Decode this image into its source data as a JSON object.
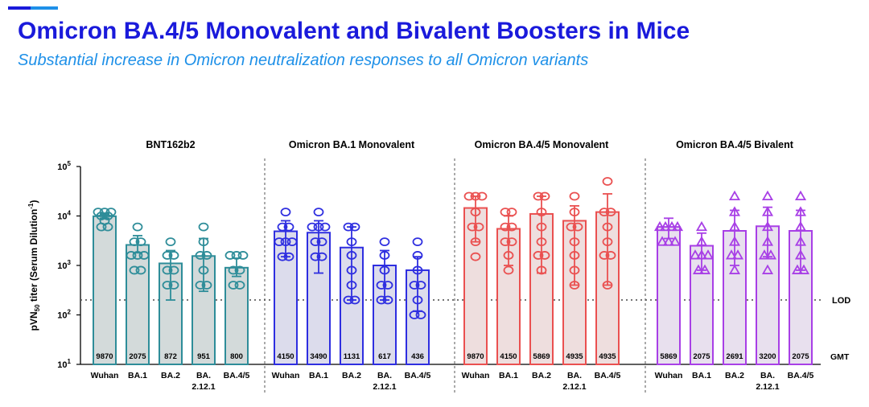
{
  "slide": {
    "title": "Omicron BA.4/5 Monovalent and Bivalent Boosters in Mice",
    "subtitle": "Substantial increase in Omicron neutralization responses to all Omicron variants",
    "accent_colors": [
      "#1a1adb",
      "#1e90e8"
    ]
  },
  "chart_data": {
    "type": "bar",
    "scale": "log10",
    "ylabel": "pVN50 titer (Serum Dilution-1)",
    "ylim": [
      10,
      100000
    ],
    "yticks": [
      {
        "base": "10",
        "exp": "1"
      },
      {
        "base": "10",
        "exp": "2"
      },
      {
        "base": "10",
        "exp": "3"
      },
      {
        "base": "10",
        "exp": "4"
      },
      {
        "base": "10",
        "exp": "5"
      }
    ],
    "lod": {
      "label": "LOD",
      "value": 200
    },
    "gmt_label": "GMT",
    "panels": [
      {
        "title": "BNT162b2",
        "marker": "circle",
        "color": "#2e8d99",
        "fill": "#d3dada",
        "categories": [
          "Wuhan",
          "BA.1",
          "BA.2",
          "BA.\n2.12.1",
          "BA.4/5"
        ],
        "gmt": [
          "9870",
          "2075",
          "872",
          "951",
          "800"
        ],
        "values": [
          9870,
          2600,
          1100,
          1550,
          900
        ],
        "error_low": [
          9000,
          1800,
          200,
          300,
          600
        ],
        "error_high": [
          11000,
          4000,
          2000,
          3500,
          1400
        ],
        "points": [
          [
            6000,
            6000,
            8000,
            10000,
            12000,
            12000,
            12000,
            10000
          ],
          [
            800,
            800,
            1600,
            3000,
            3000,
            1600,
            6000,
            1600
          ],
          [
            400,
            400,
            800,
            1600,
            1600,
            3000,
            800
          ],
          [
            400,
            400,
            800,
            1600,
            1600,
            3000,
            6000
          ],
          [
            400,
            400,
            800,
            1600,
            1600,
            1600,
            800
          ]
        ]
      },
      {
        "title": "Omicron BA.1 Monovalent",
        "marker": "circle",
        "color": "#2e2ee0",
        "fill": "#dcdcec",
        "categories": [
          "Wuhan",
          "BA.1",
          "BA.2",
          "BA.\n2.12.1",
          "BA.4/5"
        ],
        "gmt": [
          "4150",
          "3490",
          "1131",
          "617",
          "436"
        ],
        "values": [
          4900,
          4600,
          2300,
          1000,
          800
        ],
        "error_low": [
          1500,
          700,
          200,
          200,
          120
        ],
        "error_high": [
          8000,
          8000,
          6000,
          2000,
          1500
        ],
        "points": [
          [
            1500,
            1500,
            3000,
            3000,
            6000,
            6000,
            12000,
            3000
          ],
          [
            1500,
            1500,
            3000,
            6000,
            6000,
            12000,
            3000,
            6000
          ],
          [
            200,
            200,
            400,
            800,
            1600,
            3000,
            6000,
            6000
          ],
          [
            200,
            200,
            400,
            400,
            800,
            1600,
            3000
          ],
          [
            100,
            100,
            200,
            400,
            400,
            800,
            1600,
            3000
          ]
        ]
      },
      {
        "title": "Omicron BA.4/5 Monovalent",
        "marker": "circle",
        "color": "#ea5050",
        "fill": "#eedede",
        "categories": [
          "Wuhan",
          "BA.1",
          "BA.2",
          "BA.\n2.12.1",
          "BA.4/5"
        ],
        "gmt": [
          "9870",
          "4150",
          "5869",
          "4935",
          "4935"
        ],
        "values": [
          14500,
          5500,
          11000,
          8000,
          12000
        ],
        "error_low": [
          3000,
          1000,
          700,
          400,
          400
        ],
        "error_high": [
          25000,
          10000,
          25000,
          16000,
          28000
        ],
        "points": [
          [
            1500,
            3000,
            6000,
            12000,
            25000,
            25000,
            25000,
            6000
          ],
          [
            800,
            1600,
            3000,
            6000,
            12000,
            12000,
            3000,
            6000
          ],
          [
            800,
            1600,
            3000,
            6000,
            12000,
            25000,
            25000,
            1600
          ],
          [
            400,
            800,
            1600,
            3000,
            6000,
            12000,
            25000,
            6000
          ],
          [
            400,
            1600,
            3000,
            6000,
            12000,
            12000,
            50000,
            1600
          ]
        ]
      },
      {
        "title": "Omicron BA.4/5 Bivalent",
        "marker": "triangle",
        "color": "#a83fe6",
        "fill": "#e8e0ee",
        "categories": [
          "Wuhan",
          "BA.1",
          "BA.2",
          "BA.\n2.12.1",
          "BA.4/5"
        ],
        "gmt": [
          "5869",
          "2075",
          "2691",
          "3200",
          "2075"
        ],
        "values": [
          6000,
          2500,
          5000,
          6200,
          5000
        ],
        "error_low": [
          3500,
          800,
          1000,
          1500,
          800
        ],
        "error_high": [
          9000,
          4500,
          13000,
          15000,
          13000
        ],
        "points": [
          [
            3000,
            3000,
            6000,
            6000,
            6000,
            6000,
            3000
          ],
          [
            800,
            800,
            1600,
            1600,
            1600,
            3000,
            6000
          ],
          [
            800,
            1600,
            1600,
            3000,
            6000,
            12000,
            25000
          ],
          [
            800,
            1600,
            1600,
            3000,
            6000,
            12000,
            25000
          ],
          [
            800,
            800,
            1600,
            3000,
            6000,
            12000,
            25000
          ]
        ]
      }
    ]
  }
}
